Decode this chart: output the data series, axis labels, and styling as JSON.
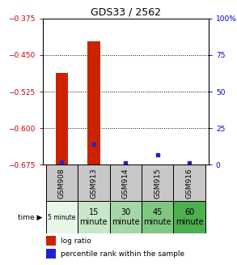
{
  "title": "GDS33 / 2562",
  "samples": [
    "GSM908",
    "GSM913",
    "GSM914",
    "GSM915",
    "GSM916"
  ],
  "time_labels_row1": [
    "5 minute",
    "15",
    "30",
    "45",
    "60"
  ],
  "time_labels_row2": [
    "",
    "minute",
    "minute",
    "minute",
    "minute"
  ],
  "time_colors": [
    "#e8f5e9",
    "#c8e6c9",
    "#a5d6a7",
    "#81c784",
    "#4caf50"
  ],
  "log_ratio_tops": [
    -0.487,
    -0.422,
    -0.675,
    -0.675,
    -0.675
  ],
  "percentile": [
    2,
    14,
    1,
    7,
    1
  ],
  "ylim_left": [
    -0.675,
    -0.375
  ],
  "ylim_right": [
    0,
    100
  ],
  "yticks_left": [
    -0.675,
    -0.6,
    -0.525,
    -0.45,
    -0.375
  ],
  "yticks_right": [
    0,
    25,
    50,
    75,
    100
  ],
  "bar_color": "#cc2200",
  "dot_color": "#2222cc",
  "bg_color": "#ffffff",
  "left_tick_color": "#cc0000",
  "right_tick_color": "#0000cc",
  "bar_width": 0.4,
  "gsm_row_color": "#c8c8c8",
  "legend_red_label": "log ratio",
  "legend_blue_label": "percentile rank within the sample"
}
